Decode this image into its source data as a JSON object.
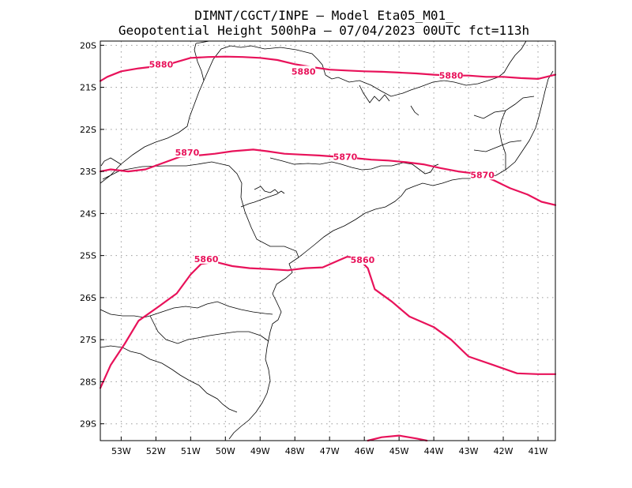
{
  "title": {
    "line1": "DIMNT/CGCT/INPE –  Model Eta05_M01_",
    "line2": "Geopotential Height 500hPa –  07/04/2023 00UTC fct=113h"
  },
  "chart_data": {
    "type": "map-contour",
    "variable": "Geopotential Height 500hPa",
    "model": "Eta05_M01_",
    "source": "DIMNT/CGCT/INPE",
    "init_time": "07/04/2023 00UTC",
    "forecast_hour": "fct=113h",
    "lon_range": [
      -53.6,
      -40.5
    ],
    "lat_range": [
      -29.4,
      -19.9
    ],
    "x_ticks": [
      "53W",
      "52W",
      "51W",
      "50W",
      "49W",
      "48W",
      "47W",
      "46W",
      "45W",
      "44W",
      "43W",
      "42W",
      "41W"
    ],
    "x_tick_values": [
      -53,
      -52,
      -51,
      -50,
      -49,
      -48,
      -47,
      -46,
      -45,
      -44,
      -43,
      -42,
      -41
    ],
    "y_ticks": [
      "20S",
      "21S",
      "22S",
      "23S",
      "24S",
      "25S",
      "26S",
      "27S",
      "28S",
      "29S"
    ],
    "y_tick_values": [
      -20,
      -21,
      -22,
      -23,
      -24,
      -25,
      -26,
      -27,
      -28,
      -29
    ],
    "grid": true,
    "contours": [
      {
        "level": "5880",
        "points": [
          [
            -53.6,
            -20.85
          ],
          [
            -53.4,
            -20.75
          ],
          [
            -53.0,
            -20.62
          ],
          [
            -52.5,
            -20.55
          ],
          [
            -52.0,
            -20.5
          ],
          [
            -51.5,
            -20.42
          ],
          [
            -51.0,
            -20.3
          ],
          [
            -50.5,
            -20.28
          ],
          [
            -50.0,
            -20.27
          ],
          [
            -49.5,
            -20.28
          ],
          [
            -49.0,
            -20.3
          ],
          [
            -48.5,
            -20.35
          ],
          [
            -48.0,
            -20.45
          ],
          [
            -47.5,
            -20.52
          ],
          [
            -47.0,
            -20.58
          ],
          [
            -46.5,
            -20.6
          ],
          [
            -46.0,
            -20.62
          ],
          [
            -45.5,
            -20.63
          ],
          [
            -45.0,
            -20.65
          ],
          [
            -44.5,
            -20.67
          ],
          [
            -44.0,
            -20.7
          ],
          [
            -43.5,
            -20.72
          ],
          [
            -43.0,
            -20.72
          ],
          [
            -42.5,
            -20.75
          ],
          [
            -42.0,
            -20.75
          ],
          [
            -41.5,
            -20.78
          ],
          [
            -41.0,
            -20.8
          ],
          [
            -40.5,
            -20.7
          ]
        ],
        "labels": [
          [
            -51.85,
            -20.45
          ],
          [
            -47.75,
            -20.62
          ],
          [
            -43.5,
            -20.72
          ]
        ]
      },
      {
        "level": "5870",
        "points": [
          [
            -53.6,
            -23.0
          ],
          [
            -53.3,
            -22.95
          ],
          [
            -52.8,
            -23.0
          ],
          [
            -52.3,
            -22.95
          ],
          [
            -51.8,
            -22.8
          ],
          [
            -51.3,
            -22.65
          ],
          [
            -50.8,
            -22.62
          ],
          [
            -50.3,
            -22.58
          ],
          [
            -49.8,
            -22.52
          ],
          [
            -49.2,
            -22.48
          ],
          [
            -48.8,
            -22.52
          ],
          [
            -48.3,
            -22.58
          ],
          [
            -47.8,
            -22.6
          ],
          [
            -47.3,
            -22.62
          ],
          [
            -46.8,
            -22.65
          ],
          [
            -46.3,
            -22.68
          ],
          [
            -45.8,
            -22.72
          ],
          [
            -45.3,
            -22.74
          ],
          [
            -44.8,
            -22.78
          ],
          [
            -44.3,
            -22.83
          ],
          [
            -43.8,
            -22.92
          ],
          [
            -43.3,
            -23.0
          ],
          [
            -42.8,
            -23.05
          ],
          [
            -42.3,
            -23.2
          ],
          [
            -41.8,
            -23.4
          ],
          [
            -41.3,
            -23.55
          ],
          [
            -40.9,
            -23.72
          ],
          [
            -40.5,
            -23.8
          ]
        ],
        "labels": [
          [
            -51.1,
            -22.55
          ],
          [
            -46.55,
            -22.65
          ],
          [
            -42.6,
            -23.08
          ]
        ]
      },
      {
        "level": "5860",
        "points": [
          [
            -53.6,
            -28.15
          ],
          [
            -53.3,
            -27.6
          ],
          [
            -52.9,
            -27.1
          ],
          [
            -52.5,
            -26.55
          ],
          [
            -51.9,
            -26.2
          ],
          [
            -51.4,
            -25.9
          ],
          [
            -51.0,
            -25.45
          ],
          [
            -50.7,
            -25.2
          ],
          [
            -50.3,
            -25.15
          ],
          [
            -49.8,
            -25.25
          ],
          [
            -49.3,
            -25.3
          ],
          [
            -48.8,
            -25.32
          ],
          [
            -48.2,
            -25.35
          ],
          [
            -47.7,
            -25.3
          ],
          [
            -47.2,
            -25.28
          ],
          [
            -46.7,
            -25.1
          ],
          [
            -46.5,
            -25.03
          ],
          [
            -46.2,
            -25.05
          ],
          [
            -45.9,
            -25.3
          ],
          [
            -45.7,
            -25.8
          ],
          [
            -45.2,
            -26.1
          ],
          [
            -44.7,
            -26.45
          ],
          [
            -44.0,
            -26.7
          ],
          [
            -43.5,
            -27.0
          ],
          [
            -43.0,
            -27.4
          ],
          [
            -42.3,
            -27.6
          ],
          [
            -41.6,
            -27.8
          ],
          [
            -41.0,
            -27.82
          ],
          [
            -40.5,
            -27.82
          ]
        ],
        "labels": [
          [
            -50.55,
            -25.08
          ],
          [
            -46.05,
            -25.1
          ]
        ]
      },
      {
        "level": "",
        "points": [
          [
            -45.9,
            -29.4
          ],
          [
            -45.5,
            -29.32
          ],
          [
            -45.0,
            -29.28
          ],
          [
            -44.5,
            -29.35
          ],
          [
            -44.2,
            -29.4
          ]
        ],
        "labels": []
      }
    ]
  }
}
